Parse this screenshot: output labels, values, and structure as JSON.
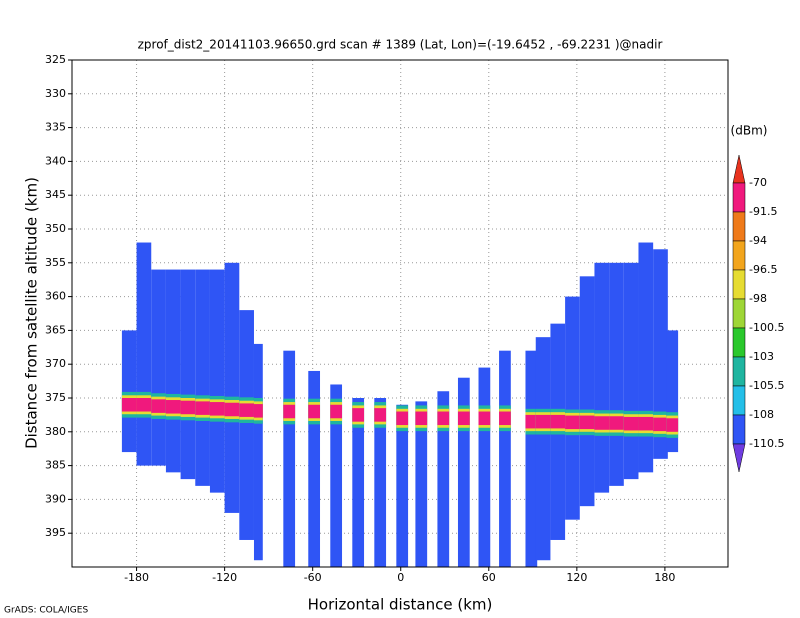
{
  "chart_data": {
    "type": "swath",
    "title": "zprof_dist2_20141103.96650.grd  scan # 1389  (Lat, Lon)=(-19.6452 , -69.2231 )@nadir",
    "xlabel": "Horizontal distance (km)",
    "ylabel": "Distance from satellite altitude (km)",
    "footer": "GrADS: COLA/IGES",
    "units": "(dBm)",
    "xlim": [
      -224,
      223
    ],
    "xticks": [
      -180,
      -120,
      -60,
      0,
      60,
      120,
      180
    ],
    "ylim": [
      325,
      400
    ],
    "yticks": [
      325,
      330,
      335,
      340,
      345,
      350,
      355,
      360,
      365,
      370,
      375,
      380,
      385,
      390,
      395
    ],
    "grid": true,
    "x": [
      -185,
      -175,
      -165,
      -155,
      -145,
      -135,
      -125,
      -115,
      -105,
      -97,
      -76,
      -59,
      -44,
      -29,
      -14,
      1,
      14,
      29,
      43,
      57,
      71,
      89,
      97,
      107,
      117,
      127,
      137,
      147,
      157,
      167,
      177,
      185
    ],
    "width": [
      10,
      10,
      10,
      10,
      10,
      10,
      10,
      10,
      10,
      6,
      8,
      8,
      8,
      8,
      8,
      8,
      8,
      8,
      8,
      8,
      8,
      8,
      10,
      10,
      10,
      10,
      10,
      10,
      10,
      10,
      10,
      8
    ],
    "top": [
      365,
      352,
      356,
      356,
      356,
      356,
      356,
      355,
      362,
      367,
      368,
      371,
      373,
      375,
      375,
      376,
      375.5,
      374,
      372,
      370.5,
      368,
      368,
      366,
      364,
      360,
      357,
      355,
      355,
      355,
      352,
      353,
      365
    ],
    "bottom": [
      383,
      385,
      385,
      386,
      387,
      388,
      389,
      392,
      396,
      399,
      400,
      400,
      400,
      400,
      400,
      400,
      400,
      400,
      400,
      400,
      400,
      400,
      399,
      396,
      393,
      391,
      389,
      388,
      387,
      386,
      384,
      383
    ],
    "peak": [
      376,
      376,
      376.2,
      376.3,
      376.4,
      376.5,
      376.6,
      376.7,
      376.8,
      376.9,
      377,
      377,
      377,
      377.5,
      377.5,
      378,
      378,
      378,
      378,
      378,
      378,
      378.5,
      378.5,
      378.5,
      378.6,
      378.6,
      378.7,
      378.7,
      378.8,
      378.8,
      378.9,
      379
    ],
    "base_level": -110.5,
    "peak_level": -91.5,
    "levels": [
      -70,
      -91.5,
      -94,
      -96.5,
      -98,
      -100.5,
      -103,
      -105.5,
      -108,
      -110.5
    ],
    "colors": [
      "#e8331e",
      "#f0197d",
      "#ef7a1a",
      "#f2a51d",
      "#e6dc32",
      "#9ed636",
      "#2ac82c",
      "#1fb5a0",
      "#24bfe8",
      "#2f55f5",
      "#6f3ce0"
    ]
  }
}
